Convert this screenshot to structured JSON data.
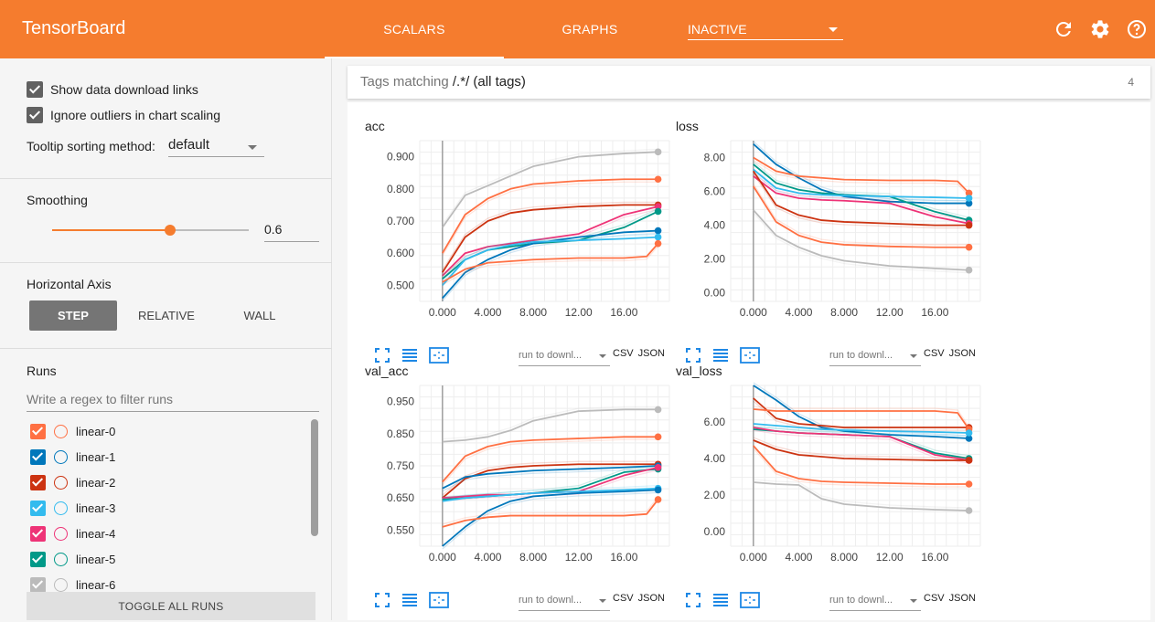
{
  "app": {
    "title": "TensorBoard"
  },
  "nav": {
    "tabs": [
      {
        "label": "SCALARS",
        "active": true
      },
      {
        "label": "GRAPHS",
        "active": false
      }
    ],
    "inactive_select": "INACTIVE"
  },
  "colors": {
    "accent": "#f57c2e"
  },
  "top_icons": [
    "refresh-icon",
    "settings-icon",
    "help-icon"
  ],
  "sidebar": {
    "show_download_links": {
      "label": "Show data download links",
      "checked": true
    },
    "ignore_outliers": {
      "label": "Ignore outliers in chart scaling",
      "checked": true
    },
    "tooltip_sorting": {
      "label": "Tooltip sorting method:",
      "value": "default"
    },
    "smoothing": {
      "title": "Smoothing",
      "value": 0.6,
      "value_label": "0.6"
    },
    "horizontal_axis": {
      "title": "Horizontal Axis",
      "options": [
        "STEP",
        "RELATIVE",
        "WALL"
      ],
      "selected": "STEP"
    },
    "runs": {
      "title": "Runs",
      "filter_placeholder": "Write a regex to filter runs",
      "items": [
        {
          "name": "linear-0",
          "color": "#ff7043",
          "checked": true
        },
        {
          "name": "linear-1",
          "color": "#0077bb",
          "checked": true
        },
        {
          "name": "linear-2",
          "color": "#cc3311",
          "checked": true
        },
        {
          "name": "linear-3",
          "color": "#33bbee",
          "checked": true
        },
        {
          "name": "linear-4",
          "color": "#ee3377",
          "checked": true
        },
        {
          "name": "linear-5",
          "color": "#009988",
          "checked": true
        },
        {
          "name": "linear-6",
          "color": "#bbbbbb",
          "checked": true
        }
      ],
      "toggle_all": "TOGGLE ALL RUNS"
    }
  },
  "main": {
    "tag_filter": {
      "prefix": "Tags matching ",
      "pattern": "/.*/",
      "suffix": " (all tags)",
      "count": "4"
    },
    "download_select": "run to downl...",
    "download_csv": "CSV",
    "download_json": "JSON"
  },
  "chart_data": [
    {
      "type": "line",
      "title": "acc",
      "x_ticks": [
        "0.000",
        "4.000",
        "8.000",
        "12.00",
        "16.00"
      ],
      "xlim": [
        -2,
        20
      ],
      "ylim": [
        0.45,
        0.95
      ],
      "y_ticks": [
        "0.500",
        "0.600",
        "0.700",
        "0.800",
        "0.900"
      ],
      "grid": true,
      "series": [
        {
          "run": "linear-6",
          "x": [
            0,
            2,
            4,
            6,
            8,
            12,
            16,
            19
          ],
          "y": [
            0.68,
            0.78,
            0.81,
            0.84,
            0.87,
            0.9,
            0.91,
            0.915
          ]
        },
        {
          "run": "linear-0",
          "x": [
            0,
            2,
            4,
            6,
            8,
            12,
            16,
            19
          ],
          "y": [
            0.6,
            0.72,
            0.77,
            0.8,
            0.815,
            0.825,
            0.83,
            0.83
          ]
        },
        {
          "run": "linear-2",
          "x": [
            0,
            2,
            4,
            6,
            8,
            12,
            16,
            19
          ],
          "y": [
            0.54,
            0.65,
            0.7,
            0.725,
            0.735,
            0.745,
            0.75,
            0.75
          ]
        },
        {
          "run": "linear-4",
          "x": [
            0,
            2,
            4,
            6,
            8,
            12,
            16,
            19
          ],
          "y": [
            0.53,
            0.6,
            0.62,
            0.63,
            0.64,
            0.66,
            0.72,
            0.745
          ]
        },
        {
          "run": "linear-5",
          "x": [
            0,
            2,
            4,
            6,
            8,
            12,
            16,
            19
          ],
          "y": [
            0.52,
            0.58,
            0.61,
            0.62,
            0.63,
            0.64,
            0.68,
            0.73
          ]
        },
        {
          "run": "linear-1",
          "x": [
            0,
            2,
            4,
            6,
            8,
            12,
            16,
            19
          ],
          "y": [
            0.46,
            0.54,
            0.58,
            0.61,
            0.63,
            0.65,
            0.665,
            0.67
          ]
        },
        {
          "run": "linear-3",
          "x": [
            0,
            2,
            4,
            6,
            8,
            12,
            16,
            19
          ],
          "y": [
            0.5,
            0.58,
            0.61,
            0.625,
            0.635,
            0.64,
            0.645,
            0.65
          ]
        },
        {
          "run": "linear-0",
          "x": [
            0,
            2,
            4,
            6,
            8,
            12,
            16,
            18,
            19
          ],
          "y": [
            0.51,
            0.55,
            0.57,
            0.575,
            0.58,
            0.585,
            0.585,
            0.59,
            0.63
          ]
        }
      ]
    },
    {
      "type": "line",
      "title": "loss",
      "x_ticks": [
        "0.000",
        "4.000",
        "8.000",
        "12.00",
        "16.00"
      ],
      "xlim": [
        -2,
        20
      ],
      "ylim": [
        -0.5,
        9
      ],
      "y_ticks": [
        "0.00",
        "2.00",
        "4.00",
        "6.00",
        "8.00"
      ],
      "grid": true,
      "series": [
        {
          "run": "linear-1",
          "x": [
            0,
            2,
            4,
            6,
            8,
            12,
            16,
            19
          ],
          "y": [
            8.8,
            7.6,
            6.8,
            6.1,
            5.7,
            5.4,
            5.3,
            5.3
          ]
        },
        {
          "run": "linear-0",
          "x": [
            0,
            2,
            4,
            6,
            8,
            12,
            16,
            18,
            19
          ],
          "y": [
            8.0,
            7.2,
            6.9,
            6.8,
            6.7,
            6.65,
            6.65,
            6.6,
            5.9
          ]
        },
        {
          "run": "linear-5",
          "x": [
            0,
            2,
            4,
            6,
            8,
            12,
            16,
            19
          ],
          "y": [
            7.6,
            6.5,
            6.1,
            5.9,
            5.8,
            5.7,
            4.8,
            4.3
          ]
        },
        {
          "run": "linear-3",
          "x": [
            0,
            2,
            4,
            6,
            8,
            12,
            16,
            19
          ],
          "y": [
            7.3,
            6.2,
            5.9,
            5.8,
            5.75,
            5.7,
            5.65,
            5.6
          ]
        },
        {
          "run": "linear-4",
          "x": [
            0,
            2,
            4,
            6,
            8,
            12,
            16,
            19
          ],
          "y": [
            6.9,
            5.9,
            5.6,
            5.5,
            5.45,
            5.3,
            4.5,
            4.1
          ]
        },
        {
          "run": "linear-2",
          "x": [
            0,
            2,
            4,
            6,
            8,
            12,
            16,
            19
          ],
          "y": [
            7.2,
            5.2,
            4.6,
            4.3,
            4.2,
            4.1,
            4.0,
            4.0
          ]
        },
        {
          "run": "linear-0",
          "x": [
            0,
            2,
            4,
            6,
            8,
            12,
            16,
            19
          ],
          "y": [
            6.3,
            4.2,
            3.4,
            3.0,
            2.85,
            2.75,
            2.7,
            2.7
          ]
        },
        {
          "run": "linear-6",
          "x": [
            0,
            2,
            4,
            6,
            8,
            12,
            16,
            19
          ],
          "y": [
            4.9,
            3.4,
            2.7,
            2.2,
            1.9,
            1.6,
            1.45,
            1.35
          ]
        }
      ]
    },
    {
      "type": "line",
      "title": "val_acc",
      "x_ticks": [
        "0.000",
        "4.000",
        "8.000",
        "12.00",
        "16.00"
      ],
      "xlim": [
        -2,
        20
      ],
      "ylim": [
        0.5,
        1.0
      ],
      "y_ticks": [
        "0.550",
        "0.650",
        "0.750",
        "0.850",
        "0.950"
      ],
      "grid": true,
      "series": [
        {
          "run": "linear-6",
          "x": [
            0,
            2,
            4,
            6,
            8,
            12,
            16,
            19
          ],
          "y": [
            0.825,
            0.83,
            0.84,
            0.86,
            0.89,
            0.92,
            0.925,
            0.925
          ]
        },
        {
          "run": "linear-0",
          "x": [
            0,
            2,
            4,
            6,
            8,
            12,
            16,
            19
          ],
          "y": [
            0.7,
            0.78,
            0.81,
            0.825,
            0.83,
            0.835,
            0.84,
            0.84
          ]
        },
        {
          "run": "linear-2",
          "x": [
            0,
            2,
            4,
            6,
            8,
            12,
            16,
            19
          ],
          "y": [
            0.65,
            0.71,
            0.735,
            0.745,
            0.75,
            0.755,
            0.755,
            0.755
          ]
        },
        {
          "run": "linear-1",
          "x": [
            0,
            2,
            4,
            6,
            8,
            12,
            16,
            19
          ],
          "y": [
            0.68,
            0.715,
            0.725,
            0.73,
            0.735,
            0.74,
            0.745,
            0.75
          ]
        },
        {
          "run": "linear-5",
          "x": [
            0,
            2,
            4,
            6,
            8,
            12,
            16,
            19
          ],
          "y": [
            0.645,
            0.65,
            0.655,
            0.66,
            0.665,
            0.68,
            0.73,
            0.74
          ]
        },
        {
          "run": "linear-4",
          "x": [
            0,
            2,
            4,
            6,
            8,
            12,
            16,
            19
          ],
          "y": [
            0.65,
            0.655,
            0.66,
            0.66,
            0.665,
            0.67,
            0.72,
            0.745
          ]
        },
        {
          "run": "linear-3",
          "x": [
            0,
            2,
            4,
            6,
            8,
            12,
            16,
            19
          ],
          "y": [
            0.64,
            0.65,
            0.655,
            0.66,
            0.665,
            0.67,
            0.675,
            0.68
          ]
        },
        {
          "run": "linear-1",
          "x": [
            0,
            2,
            4,
            6,
            8,
            12,
            16,
            19
          ],
          "y": [
            0.5,
            0.56,
            0.61,
            0.64,
            0.655,
            0.665,
            0.67,
            0.675
          ]
        },
        {
          "run": "linear-0",
          "x": [
            0,
            2,
            4,
            6,
            8,
            12,
            16,
            18,
            19
          ],
          "y": [
            0.56,
            0.58,
            0.59,
            0.595,
            0.595,
            0.595,
            0.595,
            0.6,
            0.645
          ]
        }
      ]
    },
    {
      "type": "line",
      "title": "val_loss",
      "x_ticks": [
        "0.000",
        "4.000",
        "8.000",
        "12.00",
        "16.00"
      ],
      "xlim": [
        -2,
        20
      ],
      "ylim": [
        -0.8,
        8
      ],
      "y_ticks": [
        "0.00",
        "2.00",
        "4.00",
        "6.00"
      ],
      "grid": true,
      "series": [
        {
          "run": "linear-1",
          "x": [
            0,
            2,
            4,
            6,
            8,
            12,
            16,
            19
          ],
          "y": [
            8.0,
            7.2,
            6.3,
            5.7,
            5.5,
            5.3,
            5.2,
            5.1
          ]
        },
        {
          "run": "linear-2",
          "x": [
            0,
            2,
            4,
            6,
            8,
            12,
            16,
            19
          ],
          "y": [
            7.3,
            6.2,
            5.9,
            5.8,
            5.7,
            5.7,
            5.7,
            5.7
          ]
        },
        {
          "run": "linear-0",
          "x": [
            0,
            2,
            4,
            6,
            8,
            12,
            16,
            18,
            19
          ],
          "y": [
            6.7,
            6.6,
            6.6,
            6.6,
            6.6,
            6.6,
            6.6,
            6.5,
            5.6
          ]
        },
        {
          "run": "linear-3",
          "x": [
            0,
            2,
            4,
            6,
            8,
            12,
            16,
            19
          ],
          "y": [
            5.9,
            5.8,
            5.7,
            5.6,
            5.55,
            5.5,
            5.45,
            5.4
          ]
        },
        {
          "run": "linear-5",
          "x": [
            0,
            2,
            4,
            6,
            8,
            12,
            16,
            19
          ],
          "y": [
            5.6,
            5.5,
            5.4,
            5.35,
            5.3,
            5.2,
            4.3,
            4.0
          ]
        },
        {
          "run": "linear-4",
          "x": [
            0,
            2,
            4,
            6,
            8,
            12,
            16,
            19
          ],
          "y": [
            5.7,
            5.5,
            5.4,
            5.35,
            5.3,
            5.2,
            4.2,
            3.9
          ]
        },
        {
          "run": "linear-2",
          "x": [
            0,
            2,
            4,
            6,
            8,
            12,
            16,
            19
          ],
          "y": [
            5.0,
            4.5,
            4.2,
            4.1,
            4.0,
            3.95,
            3.9,
            3.9
          ]
        },
        {
          "run": "linear-0",
          "x": [
            0,
            2,
            4,
            6,
            8,
            12,
            16,
            19
          ],
          "y": [
            4.7,
            3.3,
            2.9,
            2.75,
            2.7,
            2.65,
            2.6,
            2.6
          ]
        },
        {
          "run": "linear-6",
          "x": [
            0,
            2,
            4,
            6,
            8,
            12,
            16,
            19
          ],
          "y": [
            2.7,
            2.6,
            2.55,
            1.8,
            1.5,
            1.3,
            1.2,
            1.15
          ]
        }
      ]
    }
  ]
}
